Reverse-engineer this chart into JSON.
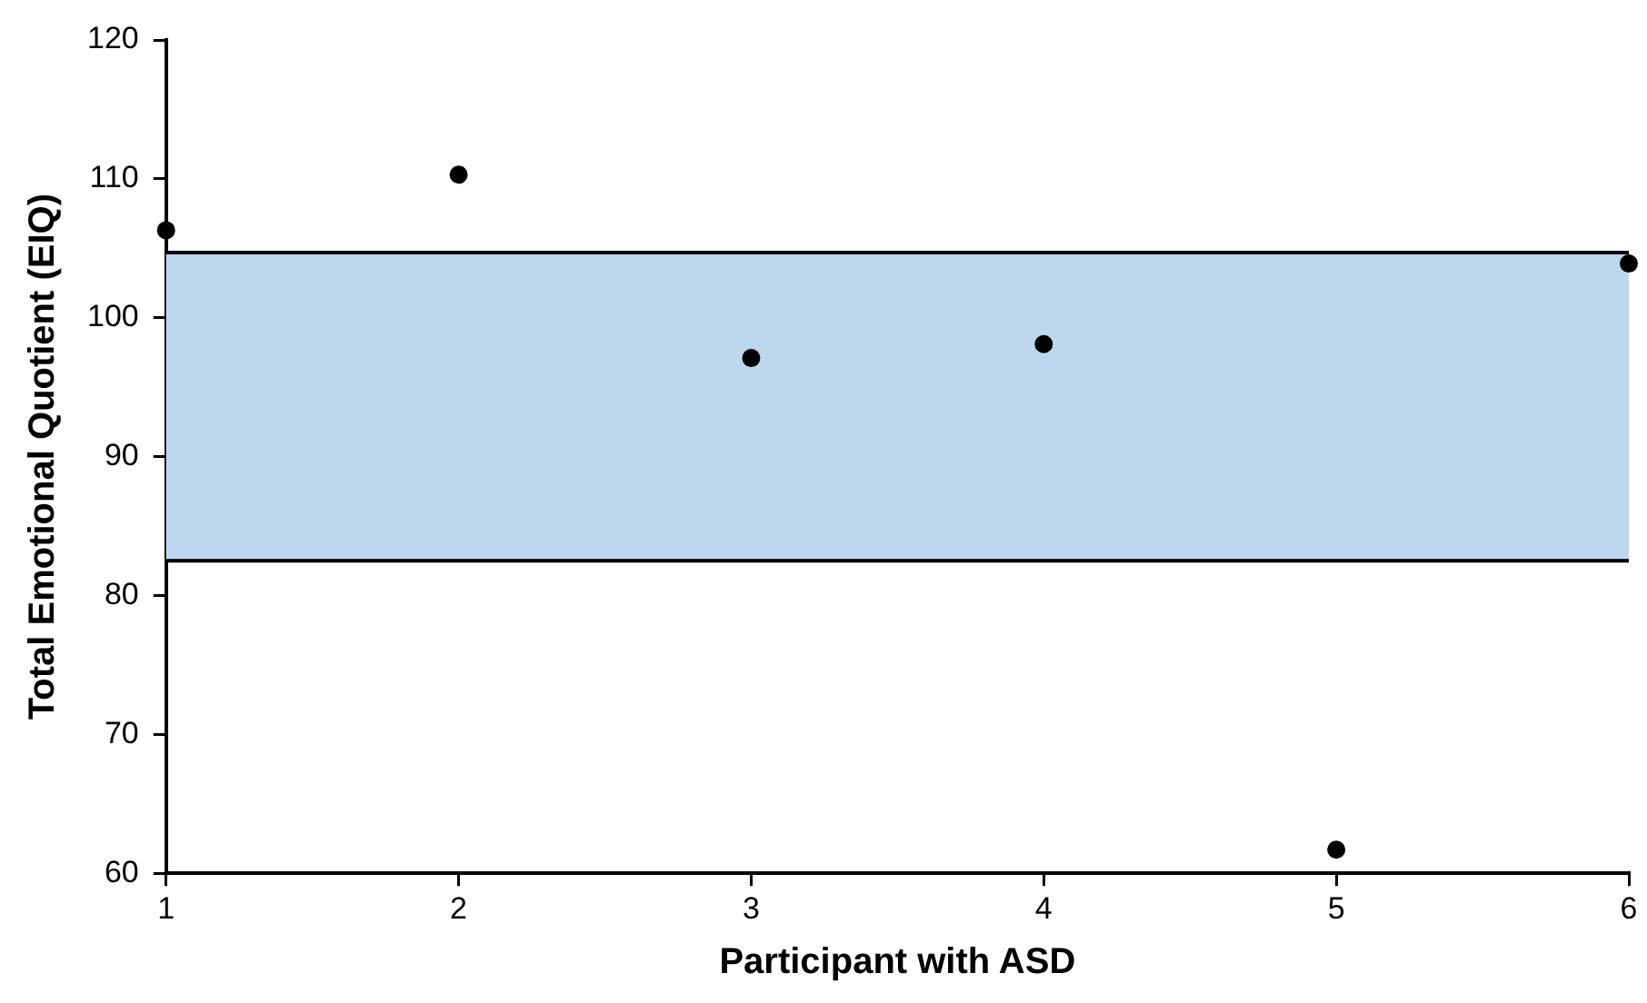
{
  "chart_data": {
    "type": "scatter",
    "xlabel": "Participant with ASD",
    "ylabel": "Total Emotional Quotient (EIQ)",
    "x": [
      1,
      2,
      3,
      4,
      5,
      6
    ],
    "series": [
      {
        "color": "#000000",
        "values": [
          106.3,
          110.3,
          97.1,
          98.1,
          61.7,
          103.9
        ]
      }
    ],
    "xlim": [
      1,
      6
    ],
    "xticks": [
      1,
      2,
      3,
      4,
      5,
      6
    ],
    "ylim": [
      60,
      120
    ],
    "yticks": [
      60,
      70,
      80,
      90,
      100,
      110,
      120
    ],
    "bands": [
      {
        "axis": "y",
        "from": 82.5,
        "to": 104.7,
        "color": "#bdd7ee"
      }
    ],
    "ref_lines": [
      {
        "axis": "y",
        "value": 82.5,
        "color": "#000000"
      },
      {
        "axis": "y",
        "value": 104.7,
        "color": "#000000"
      }
    ],
    "grid": false,
    "legend": false,
    "marker": "circle"
  }
}
